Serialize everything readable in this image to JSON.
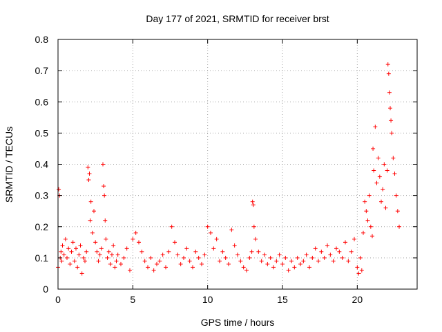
{
  "chart_data": {
    "type": "scatter",
    "title": "Day 177 of 2021, SRMTID for receiver brst",
    "xlabel": "GPS time / hours",
    "ylabel": "SRMTID / TECUs",
    "xlim": [
      0,
      24
    ],
    "ylim": [
      0,
      0.8
    ],
    "x_ticks": [
      0,
      5,
      10,
      15,
      20
    ],
    "x_tick_labels": [
      "0",
      "5",
      "10",
      "15",
      "20"
    ],
    "y_ticks": [
      0,
      0.1,
      0.2,
      0.3,
      0.4,
      0.5,
      0.6,
      0.7,
      0.8
    ],
    "y_tick_labels": [
      "0",
      "0.1",
      "0.2",
      "0.3",
      "0.4",
      "0.5",
      "0.6",
      "0.7",
      "0.8"
    ],
    "grid": true,
    "marker": "plus",
    "series": [
      {
        "name": "SRMTID",
        "color": "#ff0000",
        "x": [
          0.0,
          0.05,
          0.1,
          0.15,
          0.2,
          0.25,
          0.3,
          0.4,
          0.5,
          0.6,
          0.7,
          0.8,
          0.9,
          1.0,
          1.1,
          1.2,
          1.3,
          1.4,
          1.5,
          1.6,
          1.7,
          1.8,
          1.9,
          2.0,
          2.05,
          2.1,
          2.15,
          2.2,
          2.3,
          2.4,
          2.5,
          2.6,
          2.7,
          2.8,
          2.9,
          3.0,
          3.05,
          3.1,
          3.15,
          3.2,
          3.3,
          3.4,
          3.5,
          3.6,
          3.7,
          3.8,
          3.9,
          4.0,
          4.2,
          4.4,
          4.6,
          4.8,
          5.0,
          5.2,
          5.4,
          5.6,
          5.8,
          6.0,
          6.2,
          6.4,
          6.6,
          6.8,
          7.0,
          7.2,
          7.4,
          7.6,
          7.8,
          8.0,
          8.2,
          8.4,
          8.6,
          8.8,
          9.0,
          9.2,
          9.4,
          9.6,
          9.8,
          10.0,
          10.2,
          10.4,
          10.6,
          10.8,
          11.0,
          11.2,
          11.4,
          11.6,
          11.8,
          12.0,
          12.2,
          12.4,
          12.6,
          12.8,
          12.95,
          13.0,
          13.05,
          13.1,
          13.2,
          13.4,
          13.6,
          13.8,
          14.0,
          14.2,
          14.4,
          14.6,
          14.8,
          15.0,
          15.2,
          15.4,
          15.6,
          15.8,
          16.0,
          16.2,
          16.4,
          16.6,
          16.8,
          17.0,
          17.2,
          17.4,
          17.6,
          17.8,
          18.0,
          18.2,
          18.4,
          18.6,
          18.8,
          19.0,
          19.2,
          19.4,
          19.6,
          19.8,
          20.0,
          20.1,
          20.2,
          20.3,
          20.4,
          20.5,
          20.6,
          20.7,
          20.8,
          20.9,
          21.0,
          21.05,
          21.1,
          21.2,
          21.3,
          21.4,
          21.5,
          21.6,
          21.7,
          21.8,
          21.9,
          22.0,
          22.05,
          22.1,
          22.15,
          22.2,
          22.25,
          22.3,
          22.4,
          22.5,
          22.6,
          22.7,
          22.8
        ],
        "y": [
          0.07,
          0.32,
          0.3,
          0.1,
          0.12,
          0.09,
          0.14,
          0.11,
          0.16,
          0.1,
          0.13,
          0.08,
          0.12,
          0.15,
          0.09,
          0.13,
          0.07,
          0.11,
          0.14,
          0.05,
          0.1,
          0.09,
          0.12,
          0.39,
          0.35,
          0.37,
          0.22,
          0.28,
          0.18,
          0.25,
          0.15,
          0.12,
          0.09,
          0.11,
          0.13,
          0.4,
          0.33,
          0.3,
          0.22,
          0.16,
          0.1,
          0.12,
          0.08,
          0.11,
          0.14,
          0.07,
          0.09,
          0.11,
          0.08,
          0.1,
          0.13,
          0.06,
          0.16,
          0.18,
          0.15,
          0.12,
          0.09,
          0.07,
          0.1,
          0.06,
          0.08,
          0.09,
          0.11,
          0.07,
          0.12,
          0.2,
          0.15,
          0.11,
          0.08,
          0.1,
          0.13,
          0.09,
          0.07,
          0.12,
          0.1,
          0.08,
          0.11,
          0.2,
          0.18,
          0.13,
          0.16,
          0.09,
          0.12,
          0.1,
          0.08,
          0.19,
          0.14,
          0.11,
          0.09,
          0.07,
          0.06,
          0.1,
          0.12,
          0.28,
          0.27,
          0.2,
          0.16,
          0.12,
          0.09,
          0.11,
          0.08,
          0.1,
          0.07,
          0.09,
          0.11,
          0.08,
          0.1,
          0.06,
          0.09,
          0.07,
          0.1,
          0.08,
          0.09,
          0.11,
          0.07,
          0.1,
          0.13,
          0.09,
          0.12,
          0.1,
          0.14,
          0.11,
          0.09,
          0.13,
          0.12,
          0.1,
          0.15,
          0.09,
          0.12,
          0.16,
          0.07,
          0.05,
          0.1,
          0.06,
          0.18,
          0.28,
          0.25,
          0.22,
          0.3,
          0.2,
          0.17,
          0.45,
          0.38,
          0.52,
          0.34,
          0.42,
          0.36,
          0.28,
          0.32,
          0.4,
          0.26,
          0.38,
          0.72,
          0.69,
          0.63,
          0.58,
          0.54,
          0.5,
          0.42,
          0.37,
          0.3,
          0.25,
          0.2
        ]
      }
    ]
  }
}
